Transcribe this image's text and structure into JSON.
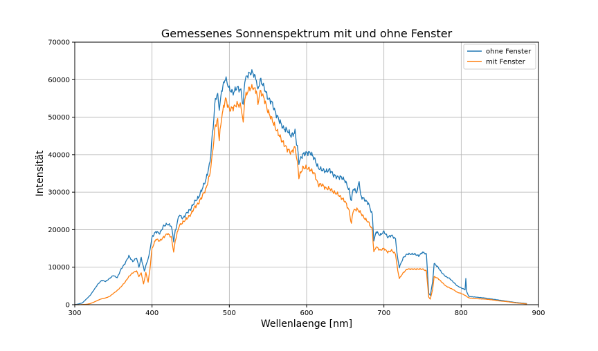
{
  "chart_data": {
    "type": "line",
    "title": "Gemessenes Sonnenspektrum mit und ohne Fenster",
    "xlabel": "Wellenlaenge [nm]",
    "ylabel": "Intensität",
    "xlim": [
      300,
      900
    ],
    "ylim": [
      0,
      70000
    ],
    "x_ticks": [
      "300",
      "400",
      "500",
      "600",
      "700",
      "800",
      "900"
    ],
    "y_ticks": [
      "0",
      "10000",
      "20000",
      "30000",
      "40000",
      "50000",
      "60000",
      "70000"
    ],
    "grid": true,
    "legend_position": "top-right",
    "series": [
      {
        "name": "ohne Fenster",
        "color": "#1f77b4",
        "points": [
          [
            300,
            0
          ],
          [
            305,
            200
          ],
          [
            310,
            500
          ],
          [
            315,
            1500
          ],
          [
            320,
            2500
          ],
          [
            325,
            4000
          ],
          [
            330,
            5500
          ],
          [
            335,
            6500
          ],
          [
            340,
            6200
          ],
          [
            345,
            7000
          ],
          [
            350,
            7800
          ],
          [
            355,
            7200
          ],
          [
            360,
            9500
          ],
          [
            365,
            11000
          ],
          [
            370,
            13000
          ],
          [
            375,
            11500
          ],
          [
            380,
            12500
          ],
          [
            383,
            10000
          ],
          [
            386,
            12500
          ],
          [
            390,
            9000
          ],
          [
            393,
            11000
          ],
          [
            396,
            13000
          ],
          [
            400,
            18000
          ],
          [
            405,
            19500
          ],
          [
            410,
            19000
          ],
          [
            415,
            21000
          ],
          [
            420,
            21500
          ],
          [
            425,
            21000
          ],
          [
            428,
            17000
          ],
          [
            430,
            19500
          ],
          [
            435,
            24000
          ],
          [
            440,
            23000
          ],
          [
            445,
            24500
          ],
          [
            450,
            25500
          ],
          [
            455,
            27500
          ],
          [
            460,
            28500
          ],
          [
            465,
            31000
          ],
          [
            470,
            33500
          ],
          [
            475,
            38000
          ],
          [
            478,
            45000
          ],
          [
            482,
            55000
          ],
          [
            485,
            56000
          ],
          [
            487,
            52000
          ],
          [
            490,
            57000
          ],
          [
            495,
            60500
          ],
          [
            500,
            57500
          ],
          [
            505,
            56500
          ],
          [
            510,
            58000
          ],
          [
            515,
            57000
          ],
          [
            518,
            53000
          ],
          [
            520,
            60000
          ],
          [
            525,
            61500
          ],
          [
            530,
            62000
          ],
          [
            535,
            60000
          ],
          [
            537,
            57000
          ],
          [
            540,
            60000
          ],
          [
            545,
            58000
          ],
          [
            550,
            55000
          ],
          [
            555,
            54000
          ],
          [
            560,
            51000
          ],
          [
            565,
            49000
          ],
          [
            570,
            47000
          ],
          [
            575,
            46500
          ],
          [
            580,
            45000
          ],
          [
            585,
            46000
          ],
          [
            588,
            42000
          ],
          [
            590,
            38000
          ],
          [
            595,
            40000
          ],
          [
            600,
            40500
          ],
          [
            605,
            40500
          ],
          [
            610,
            39000
          ],
          [
            615,
            36500
          ],
          [
            620,
            36000
          ],
          [
            625,
            35500
          ],
          [
            630,
            36000
          ],
          [
            635,
            34500
          ],
          [
            640,
            34000
          ],
          [
            645,
            34000
          ],
          [
            650,
            33000
          ],
          [
            655,
            30500
          ],
          [
            658,
            27500
          ],
          [
            660,
            31000
          ],
          [
            665,
            30000
          ],
          [
            668,
            33000
          ],
          [
            670,
            29000
          ],
          [
            675,
            28000
          ],
          [
            680,
            27000
          ],
          [
            685,
            24000
          ],
          [
            687,
            17000
          ],
          [
            690,
            19500
          ],
          [
            695,
            18500
          ],
          [
            700,
            19500
          ],
          [
            705,
            18000
          ],
          [
            710,
            18500
          ],
          [
            715,
            17500
          ],
          [
            718,
            12000
          ],
          [
            720,
            10000
          ],
          [
            725,
            12500
          ],
          [
            730,
            13500
          ],
          [
            735,
            13500
          ],
          [
            740,
            13500
          ],
          [
            745,
            13000
          ],
          [
            750,
            14000
          ],
          [
            755,
            13500
          ],
          [
            758,
            3000
          ],
          [
            760,
            2500
          ],
          [
            763,
            6000
          ],
          [
            765,
            11000
          ],
          [
            770,
            10000
          ],
          [
            775,
            8500
          ],
          [
            780,
            7500
          ],
          [
            785,
            7000
          ],
          [
            790,
            6000
          ],
          [
            795,
            5000
          ],
          [
            800,
            4500
          ],
          [
            805,
            4000
          ],
          [
            806,
            7000
          ],
          [
            807,
            3500
          ],
          [
            810,
            2200
          ],
          [
            820,
            2000
          ],
          [
            830,
            1800
          ],
          [
            840,
            1500
          ],
          [
            850,
            1200
          ],
          [
            860,
            900
          ],
          [
            870,
            600
          ],
          [
            880,
            400
          ],
          [
            885,
            300
          ]
        ]
      },
      {
        "name": "mit Fenster",
        "color": "#ff7f0e",
        "points": [
          [
            300,
            0
          ],
          [
            305,
            0
          ],
          [
            310,
            50
          ],
          [
            315,
            100
          ],
          [
            320,
            300
          ],
          [
            325,
            700
          ],
          [
            330,
            1200
          ],
          [
            335,
            1600
          ],
          [
            340,
            1800
          ],
          [
            345,
            2200
          ],
          [
            350,
            3000
          ],
          [
            355,
            3800
          ],
          [
            360,
            4800
          ],
          [
            365,
            6000
          ],
          [
            370,
            7500
          ],
          [
            375,
            8500
          ],
          [
            380,
            9000
          ],
          [
            383,
            7500
          ],
          [
            386,
            8500
          ],
          [
            389,
            5500
          ],
          [
            392,
            8500
          ],
          [
            395,
            6000
          ],
          [
            397,
            9000
          ],
          [
            400,
            15000
          ],
          [
            405,
            17500
          ],
          [
            410,
            17000
          ],
          [
            415,
            18000
          ],
          [
            420,
            19000
          ],
          [
            425,
            18000
          ],
          [
            428,
            14000
          ],
          [
            430,
            17000
          ],
          [
            435,
            21000
          ],
          [
            440,
            22000
          ],
          [
            445,
            23000
          ],
          [
            450,
            24000
          ],
          [
            455,
            26000
          ],
          [
            460,
            27000
          ],
          [
            465,
            29000
          ],
          [
            470,
            31000
          ],
          [
            475,
            35000
          ],
          [
            478,
            40000
          ],
          [
            482,
            48000
          ],
          [
            485,
            49000
          ],
          [
            487,
            44000
          ],
          [
            490,
            50000
          ],
          [
            495,
            55000
          ],
          [
            500,
            52000
          ],
          [
            505,
            52500
          ],
          [
            510,
            53500
          ],
          [
            515,
            53000
          ],
          [
            518,
            48500
          ],
          [
            520,
            55000
          ],
          [
            525,
            57500
          ],
          [
            530,
            58000
          ],
          [
            535,
            57000
          ],
          [
            537,
            53500
          ],
          [
            540,
            57000
          ],
          [
            545,
            55000
          ],
          [
            550,
            51500
          ],
          [
            555,
            49500
          ],
          [
            560,
            47000
          ],
          [
            565,
            45000
          ],
          [
            570,
            43000
          ],
          [
            575,
            41500
          ],
          [
            580,
            40500
          ],
          [
            585,
            42000
          ],
          [
            588,
            38000
          ],
          [
            590,
            34000
          ],
          [
            595,
            36500
          ],
          [
            600,
            36500
          ],
          [
            605,
            36000
          ],
          [
            610,
            35000
          ],
          [
            615,
            32000
          ],
          [
            620,
            32000
          ],
          [
            625,
            31000
          ],
          [
            630,
            31000
          ],
          [
            635,
            30000
          ],
          [
            640,
            29500
          ],
          [
            645,
            28500
          ],
          [
            650,
            27500
          ],
          [
            655,
            25000
          ],
          [
            658,
            21500
          ],
          [
            660,
            25000
          ],
          [
            665,
            25500
          ],
          [
            670,
            24500
          ],
          [
            675,
            23000
          ],
          [
            680,
            22000
          ],
          [
            685,
            20000
          ],
          [
            687,
            14000
          ],
          [
            690,
            15500
          ],
          [
            695,
            14500
          ],
          [
            700,
            15000
          ],
          [
            705,
            14000
          ],
          [
            710,
            14500
          ],
          [
            715,
            13500
          ],
          [
            718,
            9000
          ],
          [
            720,
            7000
          ],
          [
            725,
            8500
          ],
          [
            730,
            9500
          ],
          [
            735,
            9500
          ],
          [
            740,
            9500
          ],
          [
            745,
            9500
          ],
          [
            750,
            9500
          ],
          [
            755,
            9000
          ],
          [
            758,
            2000
          ],
          [
            760,
            1500
          ],
          [
            763,
            4000
          ],
          [
            765,
            7500
          ],
          [
            770,
            7000
          ],
          [
            775,
            6000
          ],
          [
            780,
            5000
          ],
          [
            785,
            4500
          ],
          [
            790,
            4000
          ],
          [
            795,
            3300
          ],
          [
            800,
            3000
          ],
          [
            805,
            2500
          ],
          [
            810,
            1800
          ],
          [
            820,
            1600
          ],
          [
            830,
            1500
          ],
          [
            840,
            1300
          ],
          [
            850,
            1000
          ],
          [
            860,
            800
          ],
          [
            870,
            500
          ],
          [
            880,
            300
          ],
          [
            885,
            200
          ]
        ]
      }
    ]
  }
}
